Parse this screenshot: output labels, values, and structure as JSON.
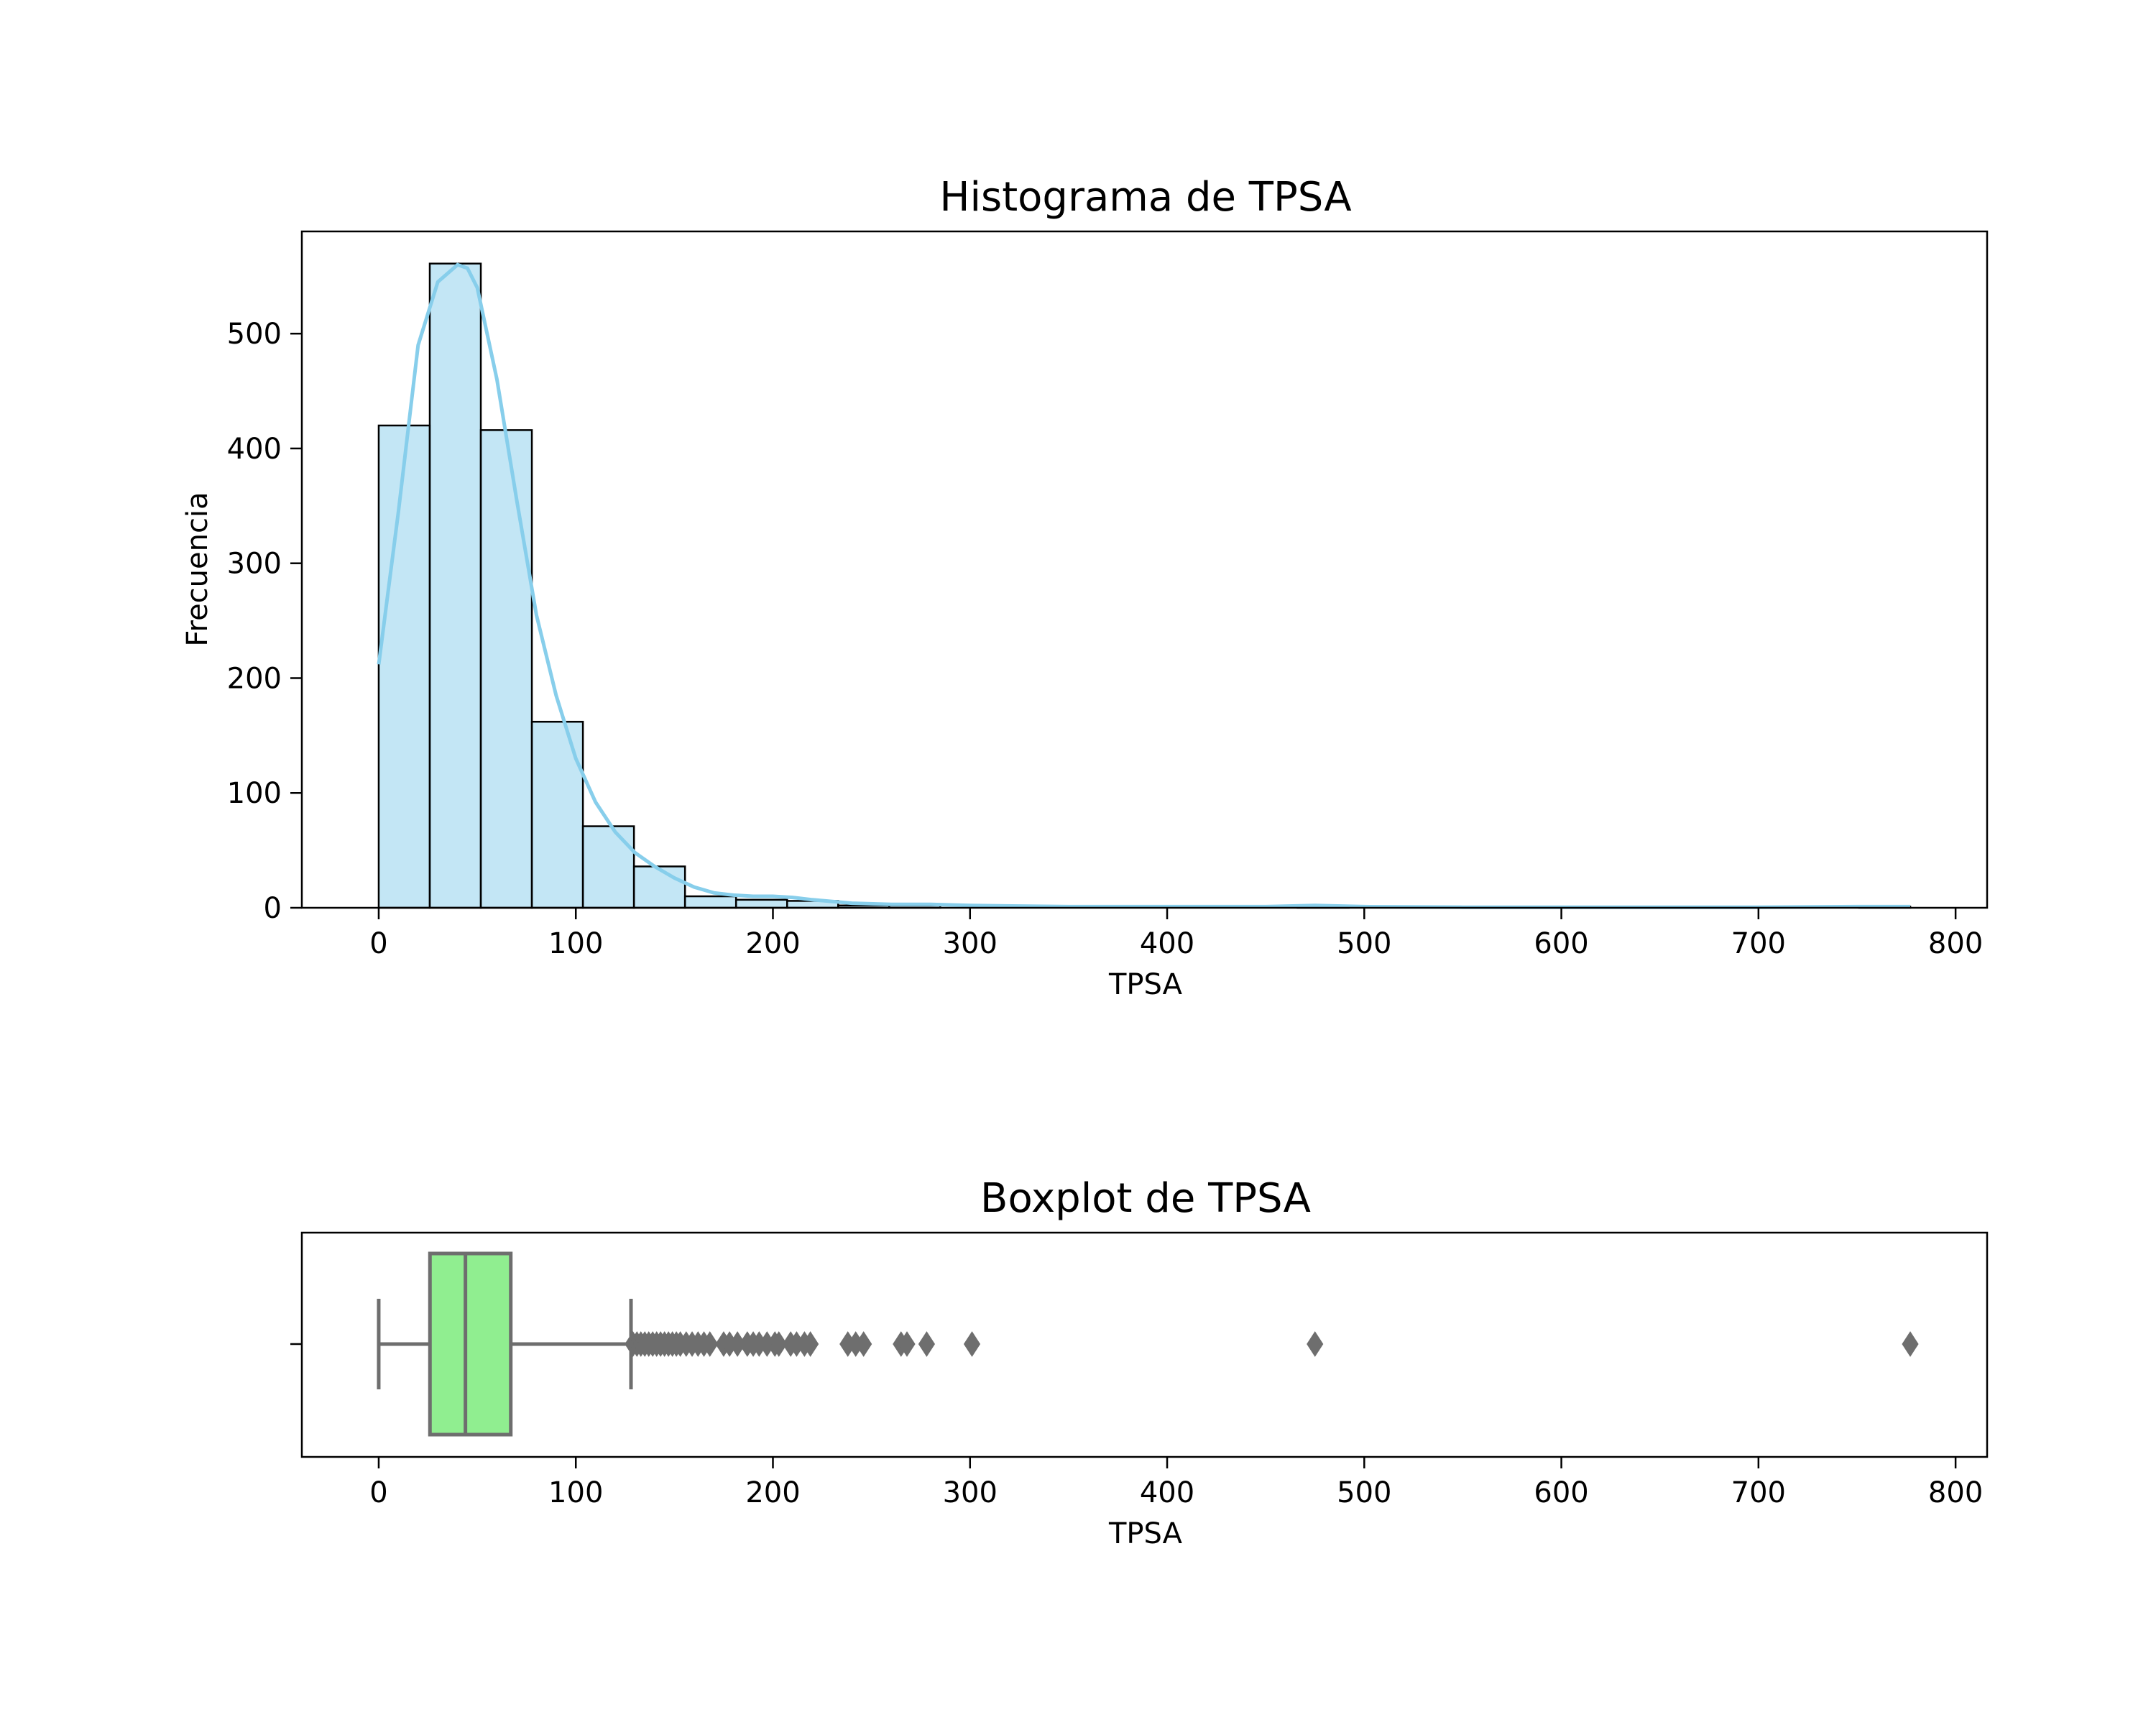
{
  "chart_data": [
    {
      "type": "bar",
      "subtype": "histogram with kde",
      "title": "Histograma de TPSA",
      "xlabel": "TPSA",
      "ylabel": "Frecuencia",
      "xlim": [
        -39,
        816
      ],
      "ylim": [
        0,
        589
      ],
      "xticks": [
        0,
        100,
        200,
        300,
        400,
        500,
        600,
        700,
        800
      ],
      "yticks": [
        0,
        100,
        200,
        300,
        400,
        500
      ],
      "bin_edges": [
        0,
        25.9,
        51.8,
        77.7,
        103.6,
        129.5,
        155.4,
        181.3,
        207.2,
        233.1,
        259,
        284.9,
        310.8,
        336.7,
        362.6,
        388.5,
        414.4,
        440.3,
        466.2,
        492.1,
        518,
        543.9,
        569.8,
        595.7,
        621.6,
        647.5,
        673.4,
        699.3,
        725.2,
        751.1,
        777
      ],
      "counts": [
        420,
        561,
        416,
        162,
        71,
        36,
        10,
        7,
        6,
        2,
        2,
        0,
        0,
        0,
        0,
        0,
        0,
        0,
        1,
        0,
        0,
        0,
        0,
        0,
        0,
        0,
        0,
        0,
        0,
        1
      ],
      "bar_color": "#87ceeb",
      "bar_edge_color": "#000000",
      "kde": {
        "color": "#87ceeb",
        "x": [
          0,
          10,
          20,
          30,
          40,
          45,
          50,
          60,
          70,
          80,
          90,
          100,
          110,
          120,
          130,
          140,
          150,
          160,
          170,
          180,
          190,
          200,
          210,
          220,
          240,
          260,
          280,
          300,
          350,
          400,
          450,
          475,
          500,
          550,
          600,
          700,
          750,
          777
        ],
        "y": [
          212,
          345,
          490,
          545,
          560,
          557,
          540,
          460,
          355,
          255,
          185,
          130,
          92,
          66,
          48,
          36,
          26,
          18,
          13,
          11,
          10,
          10,
          9,
          7,
          4,
          3,
          3,
          2,
          1,
          1,
          1,
          2,
          1,
          0.5,
          0.5,
          0.5,
          1,
          1
        ]
      }
    },
    {
      "type": "box",
      "title": "Boxplot de TPSA",
      "xlabel": "TPSA",
      "xlim": [
        -39,
        816
      ],
      "xticks": [
        0,
        100,
        200,
        300,
        400,
        500,
        600,
        700,
        800
      ],
      "whisker_low": 0,
      "q1": 26,
      "median": 44,
      "q3": 67,
      "whisker_high": 128,
      "box_color": "#90ee90",
      "line_color": "#6e6e6e",
      "outliers": [
        129,
        131,
        133,
        135,
        137,
        139,
        141,
        143,
        145,
        147,
        149,
        151,
        153,
        156,
        159,
        162,
        165,
        168,
        175,
        178,
        182,
        187,
        190,
        193,
        197,
        201,
        203,
        209,
        212,
        216,
        219,
        238,
        242,
        246,
        265,
        268,
        278,
        301,
        475,
        777
      ]
    }
  ]
}
